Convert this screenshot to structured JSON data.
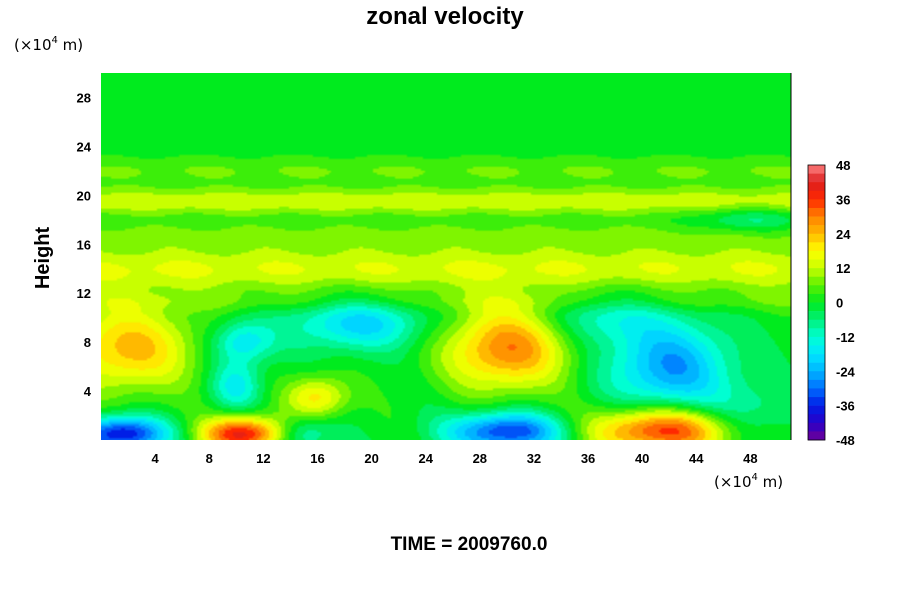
{
  "chart_data": {
    "type": "heatmap",
    "title": "zonal velocity",
    "ylabel": "Height",
    "xlabel": "",
    "x_unit": "(×10",
    "y_unit": "(×10",
    "unit_exp": "4",
    "unit_suffix": " m)",
    "xlim": [
      0,
      51
    ],
    "ylim": [
      0,
      30
    ],
    "x_ticks": [
      4,
      8,
      12,
      16,
      20,
      24,
      28,
      32,
      36,
      40,
      44,
      48
    ],
    "y_ticks": [
      4,
      8,
      12,
      16,
      20,
      24,
      28
    ],
    "colorbar": {
      "min": -48,
      "max": 48,
      "levels": [
        48,
        36,
        24,
        12,
        0,
        -12,
        -24,
        -36,
        -48
      ]
    },
    "features": [
      {
        "x": 2,
        "y": 7.5,
        "sx": 3.5,
        "sy": 2.5,
        "value": 24
      },
      {
        "x": 30,
        "y": 7.5,
        "sx": 3.2,
        "sy": 2.4,
        "value": 30
      },
      {
        "x": 41.5,
        "y": 0.8,
        "sx": 3.8,
        "sy": 1.3,
        "value": 38
      },
      {
        "x": 10.5,
        "y": 0.5,
        "sx": 2.2,
        "sy": 1.0,
        "value": 40
      },
      {
        "x": 16,
        "y": 3.5,
        "sx": 1.6,
        "sy": 1.2,
        "value": 20
      },
      {
        "x": 1.5,
        "y": 0.5,
        "sx": 2.4,
        "sy": 1.0,
        "value": -40
      },
      {
        "x": 30,
        "y": 0.7,
        "sx": 3.0,
        "sy": 1.1,
        "value": -36
      },
      {
        "x": 42,
        "y": 6,
        "sx": 3.2,
        "sy": 2.6,
        "value": -26
      },
      {
        "x": 19,
        "y": 9.5,
        "sx": 3.5,
        "sy": 1.5,
        "value": -20
      },
      {
        "x": 10.5,
        "y": 8,
        "sx": 1.6,
        "sy": 1.2,
        "value": -18
      },
      {
        "x": 10,
        "y": 4.5,
        "sx": 1.3,
        "sy": 1.4,
        "value": -16
      },
      {
        "x": 15,
        "y": 0.5,
        "sx": 1.5,
        "sy": 1.0,
        "value": -14
      },
      {
        "x": 48,
        "y": 18,
        "sx": 3.0,
        "sy": 0.8,
        "value": -10
      },
      {
        "x": 48,
        "y": 2,
        "sx": 2.5,
        "sy": 1.8,
        "value": -10
      },
      {
        "x": 37,
        "y": 10,
        "sx": 3.0,
        "sy": 1.5,
        "value": -12
      }
    ],
    "bands": [
      {
        "y": 19.5,
        "sy": 0.8,
        "value": 13
      },
      {
        "y": 14,
        "sy": 1.4,
        "value": 14
      },
      {
        "y": 16.8,
        "sy": 0.8,
        "value": 6
      },
      {
        "y": 22,
        "sy": 0.8,
        "value": 6
      },
      {
        "y": 11.3,
        "sy": 0.6,
        "value": 4
      }
    ],
    "annotation": "TIME = 2009760.0"
  }
}
